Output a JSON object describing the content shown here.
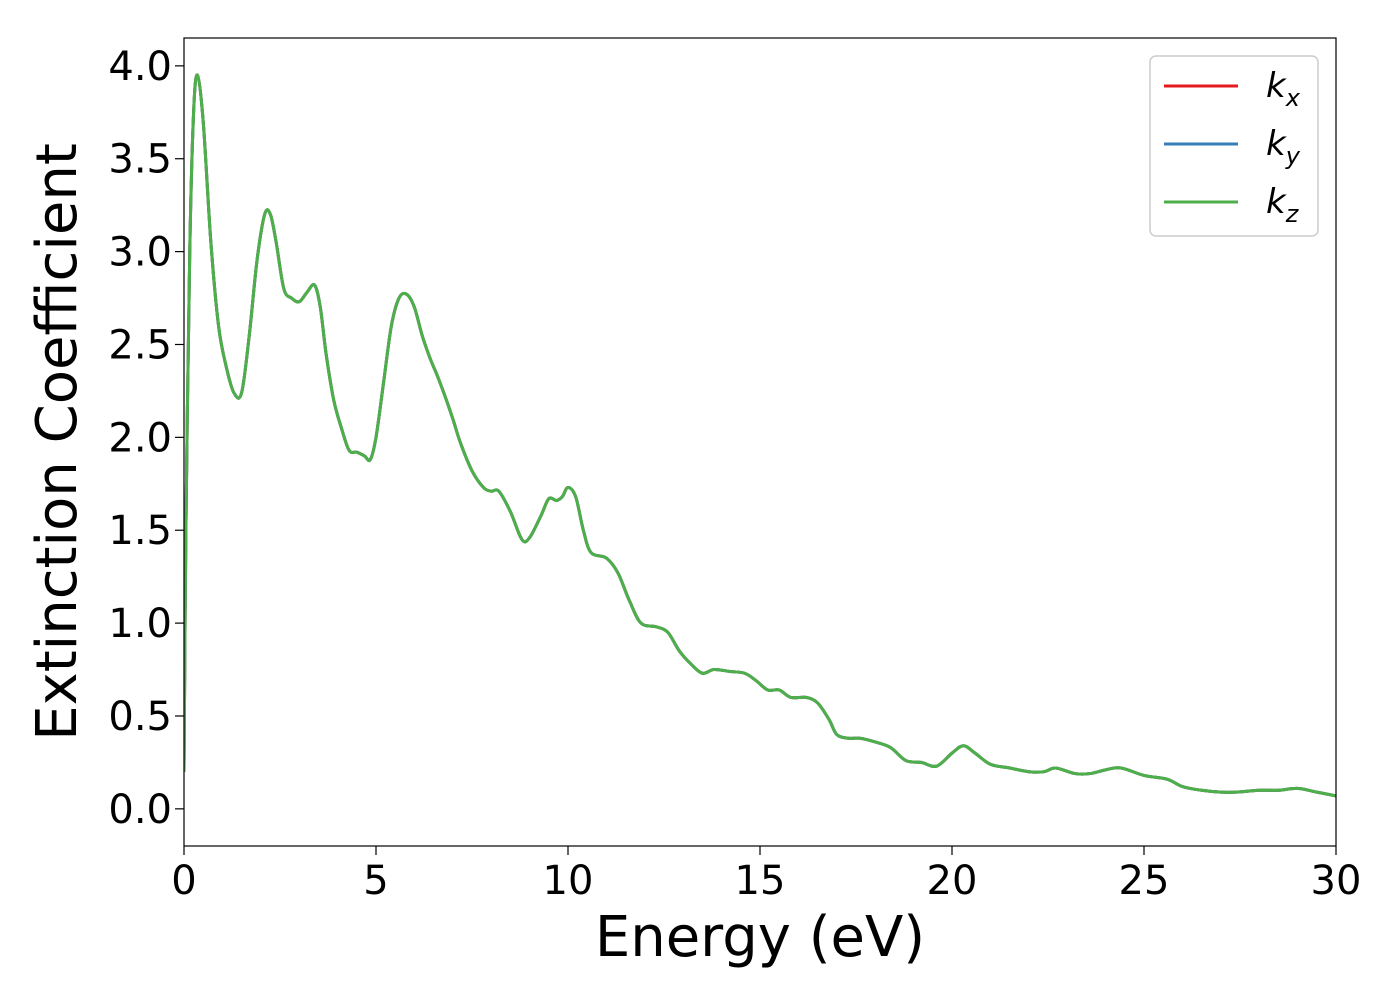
{
  "chart_data": {
    "type": "line",
    "title": "",
    "xlabel": "Energy (eV)",
    "ylabel": "Extinction Coefficient",
    "xlim": [
      0,
      30
    ],
    "ylim": [
      -0.2,
      4.15
    ],
    "xticks": [
      0,
      5,
      10,
      15,
      20,
      25,
      30
    ],
    "xtick_labels": [
      "0",
      "5",
      "10",
      "15",
      "20",
      "25",
      "30"
    ],
    "yticks": [
      0.0,
      0.5,
      1.0,
      1.5,
      2.0,
      2.5,
      3.0,
      3.5,
      4.0
    ],
    "ytick_labels": [
      "0.0",
      "0.5",
      "1.0",
      "1.5",
      "2.0",
      "2.5",
      "3.0",
      "3.5",
      "4.0"
    ],
    "grid": false,
    "legend_position": "top-right",
    "series": [
      {
        "name": "k",
        "subscript": "x",
        "color": "#e41a1c"
      },
      {
        "name": "k",
        "subscript": "y",
        "color": "#377eb8"
      },
      {
        "name": "k",
        "subscript": "z",
        "color": "#4daf4a"
      }
    ],
    "x": [
      0,
      0.05,
      0.15,
      0.25,
      0.35,
      0.5,
      0.7,
      0.9,
      1.1,
      1.3,
      1.5,
      1.7,
      1.9,
      2.1,
      2.25,
      2.4,
      2.6,
      2.8,
      3.0,
      3.2,
      3.4,
      3.55,
      3.7,
      3.9,
      4.1,
      4.3,
      4.5,
      4.7,
      4.85,
      5.0,
      5.2,
      5.4,
      5.6,
      5.8,
      6.0,
      6.2,
      6.4,
      6.6,
      6.8,
      7.0,
      7.2,
      7.5,
      7.8,
      8.0,
      8.2,
      8.5,
      8.8,
      9.0,
      9.3,
      9.5,
      9.7,
      9.85,
      10.0,
      10.2,
      10.4,
      10.6,
      11.0,
      11.3,
      11.6,
      11.9,
      12.3,
      12.6,
      12.9,
      13.2,
      13.5,
      13.8,
      14.2,
      14.6,
      14.9,
      15.2,
      15.5,
      15.8,
      16.2,
      16.5,
      16.8,
      17.0,
      17.3,
      17.6,
      18.0,
      18.4,
      18.8,
      19.2,
      19.6,
      20.0,
      20.3,
      20.6,
      21.0,
      21.5,
      22.0,
      22.4,
      22.7,
      23.2,
      23.6,
      24.0,
      24.4,
      25.0,
      25.6,
      26.0,
      26.5,
      27.0,
      27.4,
      28.0,
      28.5,
      29.0,
      29.5,
      30.0
    ],
    "values": [
      0.2,
      1.5,
      3.0,
      3.75,
      3.95,
      3.7,
      3.05,
      2.6,
      2.38,
      2.24,
      2.24,
      2.55,
      2.95,
      3.2,
      3.2,
      3.05,
      2.8,
      2.75,
      2.73,
      2.78,
      2.82,
      2.7,
      2.45,
      2.2,
      2.05,
      1.93,
      1.92,
      1.9,
      1.88,
      2.0,
      2.3,
      2.6,
      2.75,
      2.77,
      2.7,
      2.55,
      2.43,
      2.33,
      2.22,
      2.1,
      1.97,
      1.82,
      1.73,
      1.71,
      1.71,
      1.6,
      1.45,
      1.46,
      1.58,
      1.67,
      1.66,
      1.68,
      1.73,
      1.68,
      1.5,
      1.38,
      1.35,
      1.27,
      1.12,
      1.0,
      0.98,
      0.95,
      0.85,
      0.78,
      0.73,
      0.75,
      0.74,
      0.73,
      0.69,
      0.64,
      0.64,
      0.6,
      0.6,
      0.57,
      0.48,
      0.4,
      0.38,
      0.38,
      0.36,
      0.33,
      0.26,
      0.25,
      0.23,
      0.3,
      0.34,
      0.3,
      0.24,
      0.22,
      0.2,
      0.2,
      0.22,
      0.19,
      0.19,
      0.21,
      0.22,
      0.18,
      0.16,
      0.12,
      0.1,
      0.09,
      0.09,
      0.1,
      0.1,
      0.11,
      0.09,
      0.07
    ]
  }
}
